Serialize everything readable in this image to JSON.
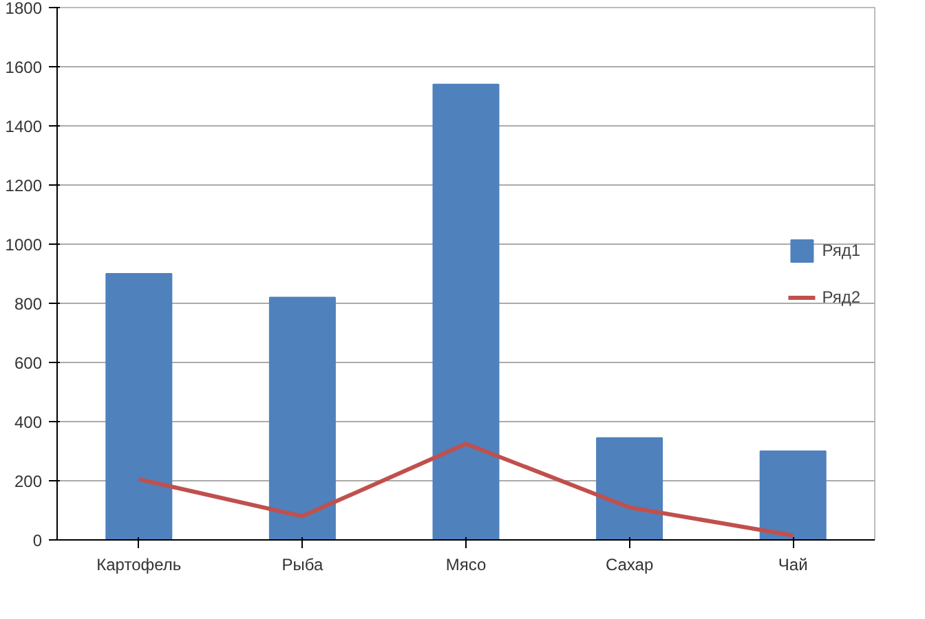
{
  "chart_data": {
    "type": "bar",
    "categories": [
      "Картофель",
      "Рыба",
      "Мясо",
      "Сахар",
      "Чай"
    ],
    "series": [
      {
        "name": "Ряд1",
        "color": "#4f81bd",
        "values": [
          900,
          820,
          1540,
          345,
          300
        ]
      },
      {
        "name": "Ряд2",
        "type": "line",
        "color": "#c0504d",
        "values": [
          205,
          80,
          325,
          110,
          15
        ]
      }
    ],
    "ylim": [
      0,
      1800
    ],
    "yticks": [
      0,
      200,
      400,
      600,
      800,
      1000,
      1200,
      1400,
      1600,
      1800
    ],
    "grid": "y",
    "legend": "right",
    "marker": "none",
    "line_style": "solid"
  }
}
